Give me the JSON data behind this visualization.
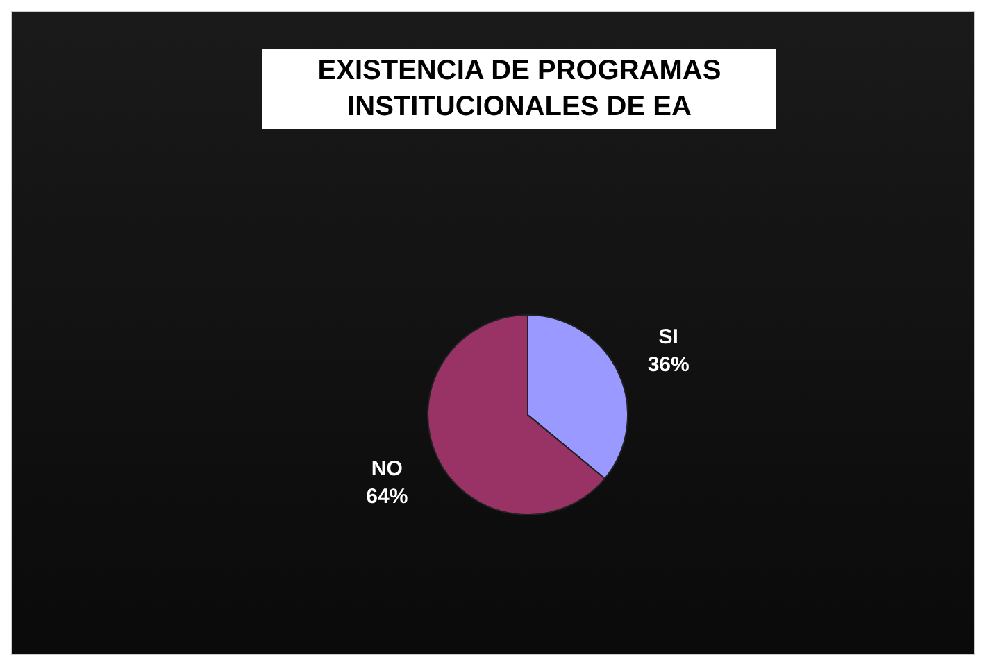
{
  "chart_data": {
    "type": "pie",
    "title": "EXISTENCIA DE PROGRAMAS INSTITUCIONALES DE EA",
    "categories": [
      "SI",
      "NO"
    ],
    "values": [
      36,
      64
    ],
    "colors": [
      "#9999ff",
      "#993366"
    ],
    "value_labels": [
      "36%",
      "64%"
    ],
    "legend": false
  }
}
